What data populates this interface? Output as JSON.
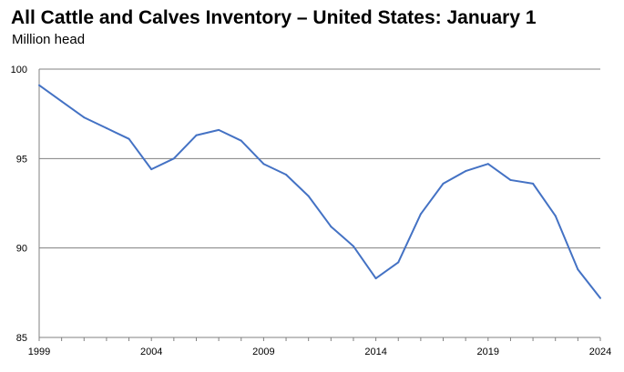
{
  "chart_data": {
    "type": "line",
    "title": "All Cattle and Calves Inventory – United States: January 1",
    "subtitle": "Million head",
    "xlabel": "",
    "ylabel": "",
    "xlim": [
      1999,
      2024
    ],
    "ylim": [
      85,
      100
    ],
    "x_ticks": [
      "1999",
      "2004",
      "2009",
      "2014",
      "2019",
      "2024"
    ],
    "y_ticks": [
      "85",
      "90",
      "95",
      "100"
    ],
    "grid": "horizontal",
    "legend": "none",
    "line_color": "#4472C4",
    "series": [
      {
        "x": [
          1999,
          2000,
          2001,
          2002,
          2003,
          2004,
          2005,
          2006,
          2007,
          2008,
          2009,
          2010,
          2011,
          2012,
          2013,
          2014,
          2015,
          2016,
          2017,
          2018,
          2019,
          2020,
          2021,
          2022,
          2023,
          2024
        ],
        "values": [
          99.1,
          98.2,
          97.3,
          96.7,
          96.1,
          94.4,
          95.0,
          96.3,
          96.6,
          96.0,
          94.7,
          94.1,
          92.9,
          91.2,
          90.1,
          88.3,
          89.2,
          91.9,
          93.6,
          94.3,
          94.7,
          93.8,
          93.6,
          91.8,
          88.8,
          87.2
        ]
      }
    ]
  }
}
